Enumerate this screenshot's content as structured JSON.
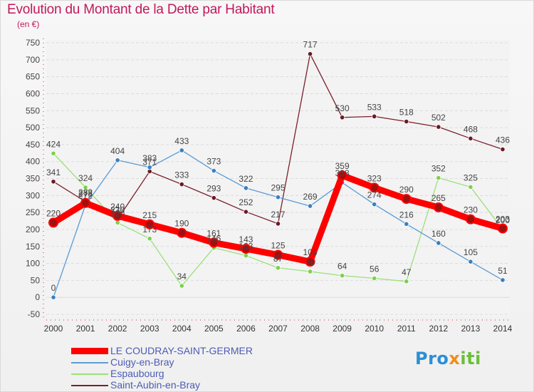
{
  "header": {
    "title": "Evolution du Montant de la Dette par Habitant",
    "subtitle": "(en €)"
  },
  "logo": {
    "text": "Proxiti"
  },
  "chart_data": {
    "type": "line",
    "title": "Evolution du Montant de la Dette par Habitant",
    "subtitle": "(en €)",
    "xlabel": "",
    "ylabel": "",
    "x": [
      "2000",
      "2001",
      "2002",
      "2003",
      "2004",
      "2005",
      "2006",
      "2007",
      "2008",
      "2009",
      "2010",
      "2011",
      "2012",
      "2013",
      "2014"
    ],
    "ylim": [
      -50,
      750
    ],
    "yticks": [
      -50,
      0,
      50,
      100,
      150,
      200,
      250,
      300,
      350,
      400,
      450,
      500,
      550,
      600,
      650,
      700,
      750
    ],
    "grid": "horizontal",
    "legend_position": "bottom-left",
    "series": [
      {
        "name": "LE COUDRAY-SAINT-GERMER",
        "color": "#ff0000",
        "marker": "#a01010",
        "values": [
          220,
          278,
          240,
          215,
          190,
          161,
          143,
          125,
          105,
          359,
          323,
          290,
          265,
          230,
          203
        ]
      },
      {
        "name": "Cuigy-en-Bray",
        "color": "#5b9bd5",
        "marker": "#3a7fc0",
        "values": [
          0,
          272,
          404,
          383,
          433,
          373,
          322,
          295,
          269,
          338,
          274,
          216,
          160,
          105,
          51
        ]
      },
      {
        "name": "Espaubourg",
        "color": "#9be07a",
        "marker": "#7dd04a",
        "values": [
          424,
          324,
          220,
          173,
          34,
          146,
          123,
          87,
          76,
          64,
          56,
          47,
          352,
          325,
          200
        ]
      },
      {
        "name": "Saint-Aubin-en-Bray",
        "color": "#7a1f2b",
        "marker": "#6b1a22",
        "values": [
          341,
          282,
          230,
          371,
          333,
          293,
          252,
          217,
          717,
          530,
          533,
          518,
          502,
          468,
          436
        ]
      }
    ]
  }
}
